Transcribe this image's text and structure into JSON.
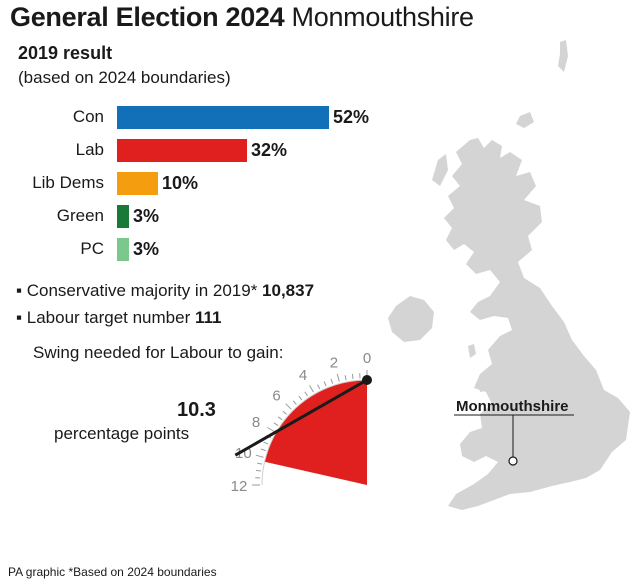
{
  "header": {
    "title_bold": "General Election 2024",
    "title_regular": "Monmouthshire"
  },
  "chart_data": [
    {
      "type": "bar",
      "title": "2019 result",
      "subtitle": "(based on 2024 boundaries)",
      "categories": [
        "Con",
        "Lab",
        "Lib Dems",
        "Green",
        "PC"
      ],
      "values": [
        52,
        32,
        10,
        3,
        3
      ],
      "value_labels": [
        "52%",
        "32%",
        "10%",
        "3%",
        "3%"
      ],
      "colors": [
        "#1170b8",
        "#e0201e",
        "#f49d0f",
        "#197a37",
        "#7cc78c"
      ],
      "orientation": "horizontal"
    },
    {
      "type": "gauge",
      "title": "Swing needed for Labour to gain:",
      "value": 10.3,
      "value_label": "10.3",
      "unit": "percentage points",
      "ticks": [
        "0",
        "2",
        "4",
        "6",
        "8",
        "10",
        "12"
      ],
      "range": [
        0,
        12
      ],
      "color": "#e0201e"
    }
  ],
  "facts": {
    "majority_text": "Conservative majority in 2019*",
    "majority_value": "10,837",
    "target_text": "Labour target number",
    "target_value": "111"
  },
  "map": {
    "label": "Monmouthshire"
  },
  "footer": "PA graphic *Based on 2024 boundaries"
}
